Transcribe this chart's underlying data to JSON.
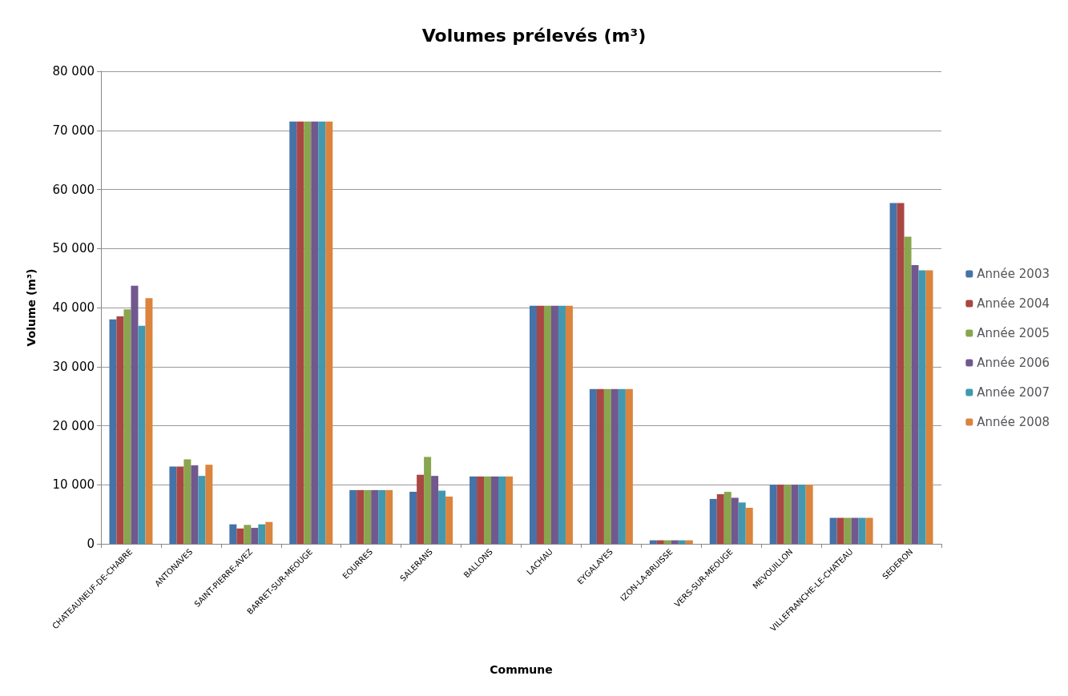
{
  "chart_data": {
    "type": "bar",
    "title": "Volumes prélevés (m³)",
    "xlabel": "Commune",
    "ylabel": "Volume (m³)",
    "categories": [
      "CHATEAUNEUF-DE-CHABRE",
      "ANTONAVES",
      "SAINT-PIERRE-AVEZ",
      "BARRET-SUR-MEOUGE",
      "EOURRES",
      "SALERANS",
      "BALLONS",
      "LACHAU",
      "EYGALAYES",
      "IZON-LA-BRUISSE",
      "VERS-SUR-MEOUGE",
      "MEVOUILLON",
      "VILLEFRANCHE-LE-CHATEAU",
      "SEDERON"
    ],
    "series": [
      {
        "name": "Année 2003",
        "color": "#4572a7",
        "values": [
          38000,
          13100,
          3300,
          71500,
          9100,
          8800,
          11400,
          40300,
          26200,
          600,
          7600,
          10000,
          4400,
          57700
        ]
      },
      {
        "name": "Année 2004",
        "color": "#aa4643",
        "values": [
          38500,
          13100,
          2600,
          71500,
          9100,
          11700,
          11400,
          40300,
          26200,
          600,
          8400,
          10000,
          4400,
          57700
        ]
      },
      {
        "name": "Année 2005",
        "color": "#89a54e",
        "values": [
          39700,
          14300,
          3200,
          71500,
          9100,
          14700,
          11400,
          40300,
          26200,
          600,
          8800,
          10000,
          4400,
          52000
        ]
      },
      {
        "name": "Année 2006",
        "color": "#71588f",
        "values": [
          43700,
          13300,
          2700,
          71500,
          9100,
          11500,
          11400,
          40300,
          26200,
          600,
          7800,
          10000,
          4400,
          47200
        ]
      },
      {
        "name": "Année 2007",
        "color": "#4198af",
        "values": [
          36900,
          11500,
          3300,
          71500,
          9100,
          9000,
          11400,
          40300,
          26200,
          600,
          7000,
          10000,
          4400,
          46300
        ]
      },
      {
        "name": "Année 2008",
        "color": "#db843d",
        "values": [
          41600,
          13400,
          3700,
          71500,
          9100,
          8000,
          11400,
          40300,
          26200,
          600,
          6100,
          10000,
          4400,
          46300
        ]
      }
    ],
    "ylim": [
      0,
      80000
    ],
    "yticks": [
      0,
      {
        "value": 10000,
        "label": "10 000"
      },
      {
        "value": 20000,
        "label": "20 000"
      },
      {
        "value": 30000,
        "label": "30 000"
      },
      {
        "value": 40000,
        "label": "40 000"
      },
      {
        "value": 50000,
        "label": "50 000"
      },
      {
        "value": 60000,
        "label": "60 000"
      },
      {
        "value": 70000,
        "label": "70 000"
      },
      {
        "value": 80000,
        "label": "80 000"
      }
    ],
    "grid": "y",
    "legend": "right"
  }
}
